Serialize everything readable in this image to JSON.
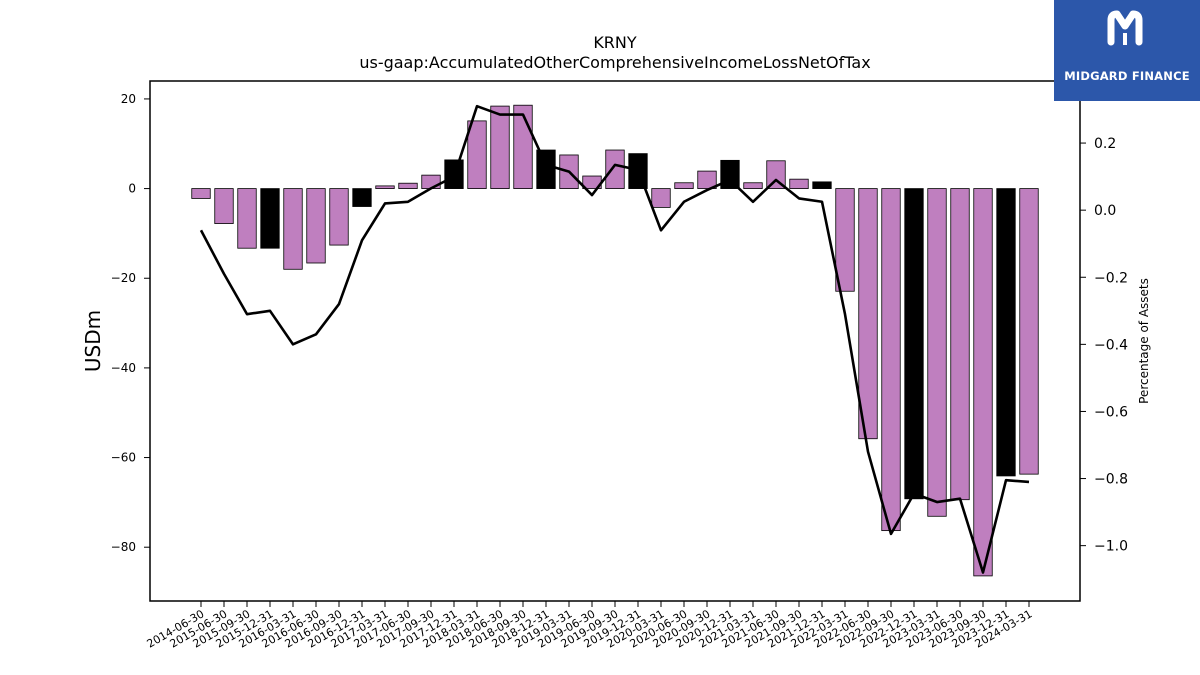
{
  "brand": {
    "name": "MIDGARD FINANCE"
  },
  "chart_data": {
    "type": "bar",
    "title": "KRNY",
    "subtitle": "us-gaap:AccumulatedOtherComprehensiveIncomeLossNetOfTax",
    "ylabel": "USDm",
    "y2label": "Percentage of Assets",
    "ylim": [
      -92,
      24
    ],
    "y2lim": [
      -1.165,
      0.385
    ],
    "yticks": [
      20,
      0,
      -20,
      -40,
      -60,
      -80
    ],
    "ytick_labels": [
      "20",
      "0",
      "−20",
      "−40",
      "−60",
      "−80"
    ],
    "y2ticks": [
      0.2,
      0.0,
      -0.2,
      -0.4,
      -0.6,
      -0.8,
      -1.0
    ],
    "y2tick_labels": [
      "0.2",
      "0.0",
      "−0.2",
      "−0.4",
      "−0.6",
      "−0.8",
      "−1.0"
    ],
    "grid": false,
    "colors": {
      "bar": "#bf7fbf",
      "bar_highlight": "#000000",
      "line": "#000000"
    },
    "categories": [
      "2014-06-30",
      "2015-06-30",
      "2015-09-30",
      "2015-12-31",
      "2016-03-31",
      "2016-06-30",
      "2016-09-30",
      "2016-12-31",
      "2017-03-31",
      "2017-06-30",
      "2017-09-30",
      "2017-12-31",
      "2018-03-31",
      "2018-06-30",
      "2018-09-30",
      "2018-12-31",
      "2019-03-31",
      "2019-06-30",
      "2019-09-30",
      "2019-12-31",
      "2020-03-31",
      "2020-06-30",
      "2020-09-30",
      "2020-12-31",
      "2021-03-31",
      "2021-06-30",
      "2021-09-30",
      "2021-12-31",
      "2022-03-31",
      "2022-06-30",
      "2022-09-30",
      "2022-12-31",
      "2023-03-31",
      "2023-06-30",
      "2023-09-30",
      "2023-12-31",
      "2024-03-31"
    ],
    "series": [
      {
        "kind": "bar",
        "values": [
          -2.2,
          -7.8,
          -13.3,
          -13.3,
          -18,
          -16.6,
          -12.6,
          -4,
          0.6,
          1.2,
          3,
          6.4,
          15.1,
          18.4,
          18.6,
          8.6,
          7.5,
          2.8,
          8.6,
          7.8,
          -4.2,
          1.3,
          3.9,
          6.3,
          1.3,
          6.2,
          2.1,
          1.5,
          -22.9,
          -55.8,
          -76.3,
          -69.2,
          -73.1,
          -69.4,
          -86.4,
          -64.1,
          -63.7
        ],
        "highlight": [
          false,
          false,
          false,
          true,
          false,
          false,
          false,
          true,
          false,
          false,
          false,
          true,
          false,
          false,
          false,
          true,
          false,
          false,
          false,
          true,
          false,
          false,
          false,
          true,
          false,
          false,
          false,
          true,
          false,
          false,
          false,
          true,
          false,
          false,
          false,
          true,
          false
        ]
      },
      {
        "kind": "line",
        "axis": "right",
        "values": [
          -0.06,
          -0.19,
          -0.31,
          -0.3,
          -0.4,
          -0.37,
          -0.28,
          -0.09,
          0.02,
          0.025,
          0.065,
          0.1,
          0.31,
          0.285,
          0.285,
          0.135,
          0.115,
          0.045,
          0.135,
          0.12,
          -0.06,
          0.025,
          0.06,
          0.09,
          0.025,
          0.09,
          0.035,
          0.025,
          -0.31,
          -0.72,
          -0.965,
          -0.845,
          -0.87,
          -0.86,
          -1.08,
          -0.805,
          -0.81
        ]
      }
    ]
  }
}
